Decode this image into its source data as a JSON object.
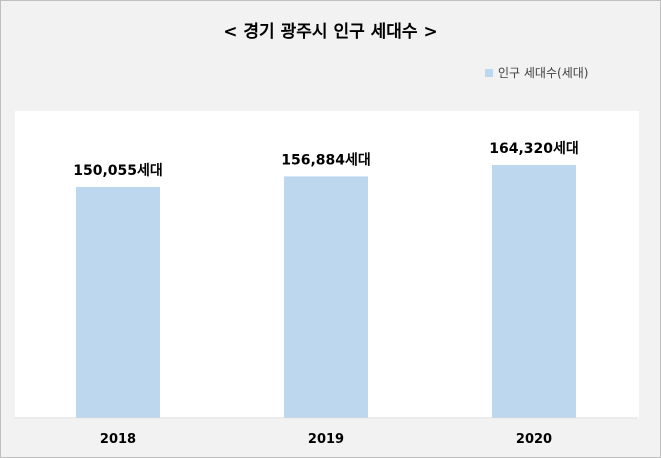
{
  "chart_data": {
    "type": "bar",
    "title": "< 경기 광주시 인구 세대수 >",
    "categories": [
      "2018",
      "2019",
      "2020"
    ],
    "series": [
      {
        "name": "인구 세대수(세대)",
        "values": [
          150055,
          156884,
          164320
        ]
      }
    ],
    "data_labels": [
      "150,055세대",
      "156,884세대",
      "164,320세대"
    ],
    "ylim": [
      0,
      200000
    ],
    "grid": false,
    "legend_position": "top-right",
    "bar_color": "#bdd7ee",
    "axis_color": "#d9d9d9"
  }
}
